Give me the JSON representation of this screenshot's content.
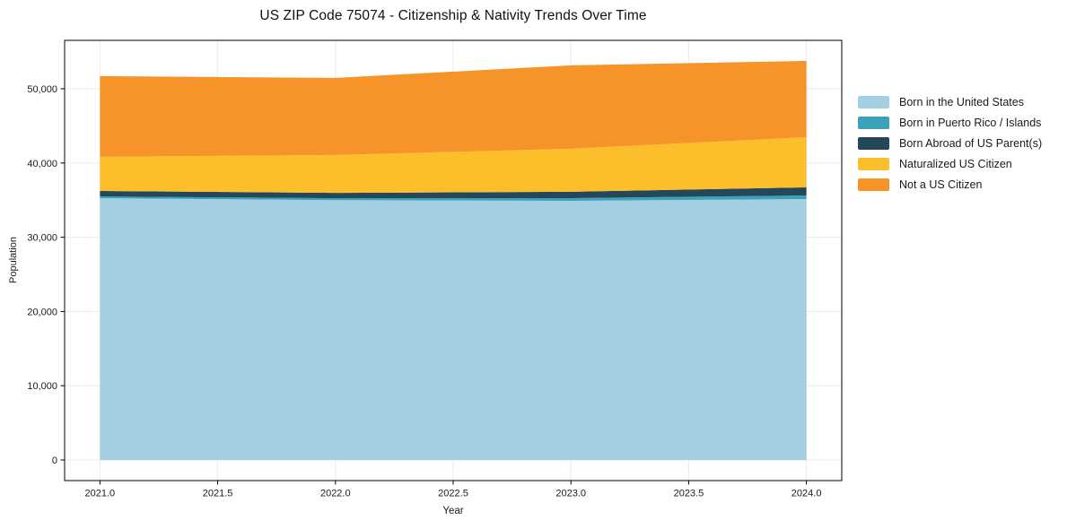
{
  "chart_data": {
    "type": "area",
    "stacked": true,
    "title": "US ZIP Code 75074 - Citizenship & Nativity Trends Over Time",
    "xlabel": "Year",
    "ylabel": "Population",
    "x": [
      2021,
      2022,
      2023,
      2024
    ],
    "series": [
      {
        "name": "Born in the United States",
        "color": "#a3cfe4",
        "values": [
          35250,
          35000,
          34900,
          35150
        ]
      },
      {
        "name": "Born in Puerto Rico / Islands",
        "color": "#3ba2b9",
        "values": [
          250,
          250,
          370,
          480
        ]
      },
      {
        "name": "Born Abroad of US Parent(s)",
        "color": "#24485a",
        "values": [
          730,
          730,
          850,
          1080
        ]
      },
      {
        "name": "Naturalized US Citizen",
        "color": "#fcbe2a",
        "values": [
          4600,
          5090,
          5800,
          6770
        ]
      },
      {
        "name": "Not a US Citizen",
        "color": "#f79429",
        "values": [
          10870,
          10390,
          11230,
          10280
        ]
      }
    ],
    "totals": [
      51700,
      51460,
      53150,
      53760
    ],
    "xticks": {
      "values": [
        2021.0,
        2021.5,
        2022.0,
        2022.5,
        2023.0,
        2023.5,
        2024.0
      ],
      "labels": [
        "2021.0",
        "2021.5",
        "2022.0",
        "2022.5",
        "2023.0",
        "2023.5",
        "2024.0"
      ]
    },
    "yticks": {
      "values": [
        0,
        10000,
        20000,
        30000,
        40000,
        50000
      ],
      "labels": [
        "0",
        "10,000",
        "20,000",
        "30,000",
        "40,000",
        "50,000"
      ]
    },
    "xlim": [
      2020.85,
      2024.15
    ],
    "ylim": [
      -2778,
      56522
    ],
    "grid": true,
    "grid_color": "#ebebeb",
    "spine_color": "#000000",
    "tick_label_color": "#1a1a1a",
    "legend_position": "right"
  }
}
